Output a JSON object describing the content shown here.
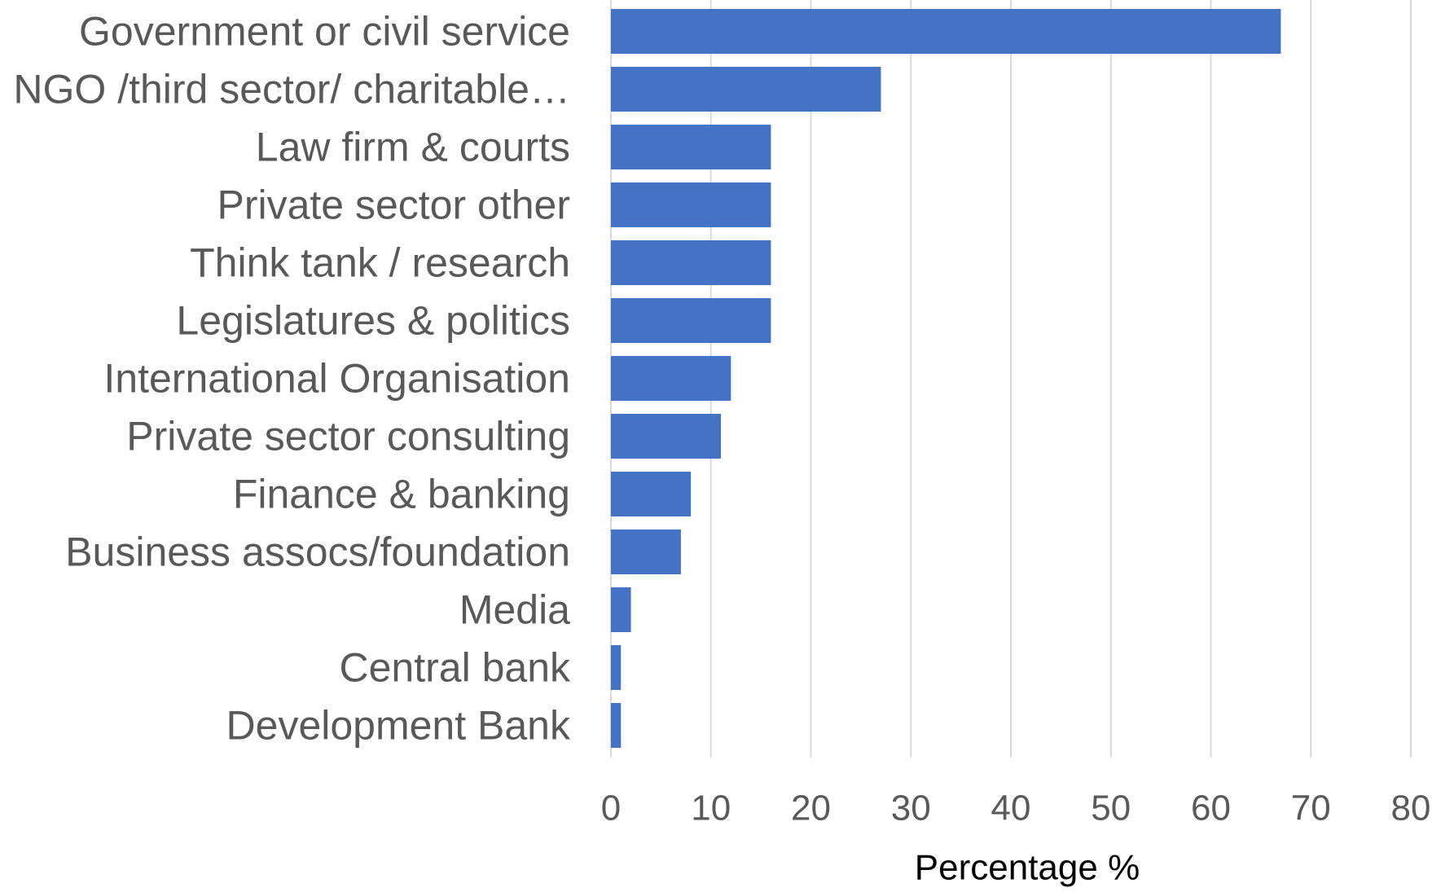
{
  "chart_data": {
    "type": "bar",
    "orientation": "horizontal",
    "categories": [
      "Government or civil service",
      "NGO /third sector/ charitable…",
      "Law firm & courts",
      "Private sector other",
      "Think tank / research",
      "Legislatures & politics",
      "International Organisation",
      "Private sector consulting",
      "Finance & banking",
      "Business assocs/foundation",
      "Media",
      "Central bank",
      "Development Bank"
    ],
    "values": [
      67,
      27,
      16,
      16,
      16,
      16,
      12,
      11,
      8,
      7,
      2,
      1,
      1
    ],
    "xlabel": "Percentage %",
    "xlim": [
      0,
      80
    ],
    "xticks": [
      0,
      10,
      20,
      30,
      40,
      50,
      60,
      70,
      80
    ],
    "xtick_labels": [
      "0",
      "10",
      "20",
      "30",
      "40",
      "50",
      "60",
      "70",
      "80"
    ],
    "grid": true,
    "legend": "none",
    "bar_color": "#4472C4",
    "grid_color": "#D9D9D9",
    "text_color": "#595959"
  }
}
